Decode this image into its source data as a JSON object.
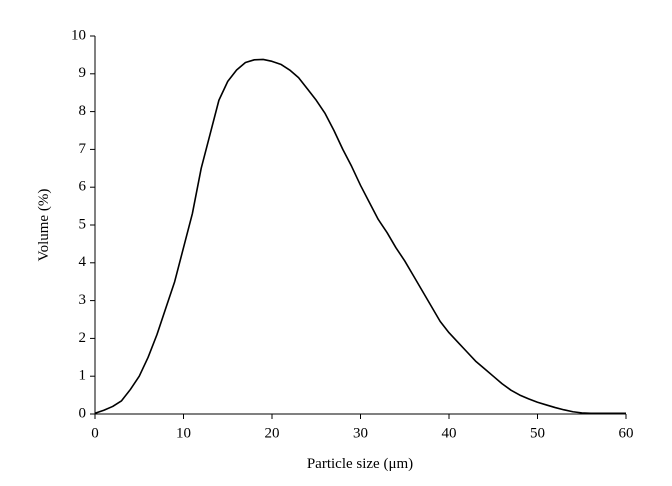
{
  "chart_data": {
    "type": "line",
    "x_label": "Particle size (μm)",
    "y_label": "Volume (%)",
    "x": [
      0,
      1,
      2,
      3,
      4,
      5,
      6,
      7,
      8,
      9,
      10,
      11,
      12,
      13,
      14,
      15,
      16,
      17,
      18,
      19,
      20,
      21,
      22,
      23,
      24,
      25,
      26,
      27,
      28,
      29,
      30,
      31,
      32,
      33,
      34,
      35,
      36,
      37,
      38,
      39,
      40,
      41,
      42,
      43,
      44,
      45,
      46,
      47,
      48,
      49,
      50,
      51,
      52,
      53,
      54,
      55,
      56,
      57,
      58,
      59,
      60
    ],
    "series": [
      {
        "color": "#000000",
        "values": [
          0.02,
          0.1,
          0.2,
          0.35,
          0.65,
          1.0,
          1.5,
          2.1,
          2.8,
          3.5,
          4.4,
          5.3,
          6.5,
          7.4,
          8.3,
          8.8,
          9.1,
          9.3,
          9.37,
          9.38,
          9.33,
          9.25,
          9.1,
          8.9,
          8.6,
          8.3,
          7.95,
          7.5,
          7.0,
          6.55,
          6.05,
          5.6,
          5.15,
          4.8,
          4.4,
          4.05,
          3.65,
          3.25,
          2.85,
          2.45,
          2.15,
          1.9,
          1.65,
          1.4,
          1.2,
          1.0,
          0.8,
          0.63,
          0.5,
          0.4,
          0.31,
          0.24,
          0.17,
          0.11,
          0.06,
          0.03,
          0.02,
          0.02,
          0.02,
          0.02,
          0.02
        ]
      }
    ],
    "xlim": [
      0,
      60
    ],
    "xticks": [
      0,
      10,
      20,
      30,
      40,
      50,
      60
    ],
    "ylim": [
      0,
      10
    ],
    "yticks": [
      0,
      1,
      2,
      3,
      4,
      5,
      6,
      7,
      8,
      9,
      10
    ]
  }
}
